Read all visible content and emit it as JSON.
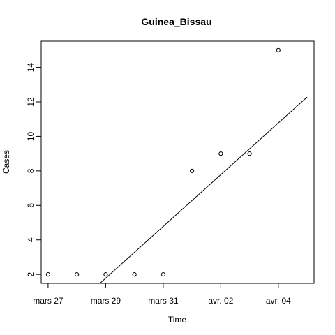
{
  "chart_data": {
    "type": "scatter",
    "title": "Guinea_Bissau",
    "xlabel": "Time",
    "ylabel": "Cases",
    "x": [
      "2020-03-27",
      "2020-03-28",
      "2020-03-29",
      "2020-03-30",
      "2020-03-31",
      "2020-04-01",
      "2020-04-02",
      "2020-04-03",
      "2020-04-04"
    ],
    "y": [
      2,
      2,
      2,
      2,
      2,
      8,
      9,
      9,
      15
    ],
    "xlim": [
      "2020-03-26 18:14",
      "2020-04-05 05:46"
    ],
    "ylim": [
      1.48,
      15.52
    ],
    "x_ticks": [
      {
        "value": "2020-03-27",
        "label": "mars 27"
      },
      {
        "value": "2020-03-29",
        "label": "mars 29"
      },
      {
        "value": "2020-03-31",
        "label": "mars 31"
      },
      {
        "value": "2020-04-02",
        "label": "avr. 02"
      },
      {
        "value": "2020-04-04",
        "label": "avr. 04"
      }
    ],
    "y_ticks": [
      2,
      4,
      6,
      8,
      10,
      12,
      14
    ],
    "trend_line": {
      "type": "linear",
      "from": {
        "x": "2020-03-27",
        "y": -1.22
      },
      "to": {
        "x": "2020-04-05",
        "y": 12.28
      }
    },
    "grid": false,
    "legend": "none",
    "point_marker": "open-circle",
    "color": "#000000"
  }
}
